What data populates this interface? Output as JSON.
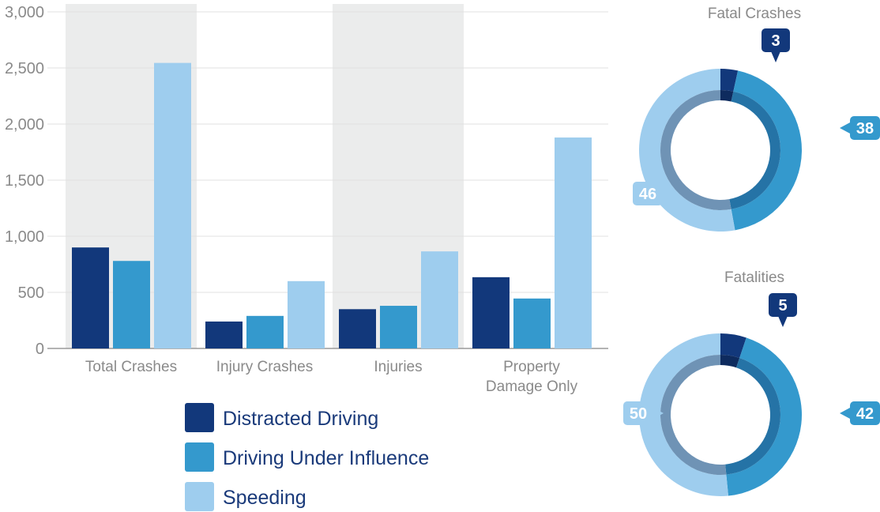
{
  "chart_data": [
    {
      "type": "bar",
      "categories": [
        "Total Crashes",
        "Injury Crashes",
        "Injuries",
        "Property Damage Only"
      ],
      "category_lines": [
        [
          "Total Crashes"
        ],
        [
          "Injury Crashes"
        ],
        [
          "Injuries"
        ],
        [
          "Property",
          "Damage Only"
        ]
      ],
      "series": [
        {
          "name": "Distracted Driving",
          "color": "#12387b",
          "values": [
            900,
            240,
            350,
            635
          ]
        },
        {
          "name": "Driving Under Influence",
          "color": "#3499cd",
          "values": [
            780,
            290,
            380,
            445
          ]
        },
        {
          "name": "Speeding",
          "color": "#9ecdee",
          "values": [
            2545,
            600,
            865,
            1880
          ]
        }
      ],
      "ylim": [
        0,
        3000
      ],
      "yticks": [
        0,
        500,
        1000,
        1500,
        2000,
        2500,
        3000
      ],
      "ytick_labels": [
        "0",
        "500",
        "1,000",
        "1,500",
        "2,000",
        "2,500",
        "3,000"
      ],
      "grid": true,
      "shaded_categories": [
        0,
        2
      ],
      "legend_position": "bottom"
    },
    {
      "type": "pie",
      "style": "donut",
      "title": "Fatal Crashes",
      "labels": [
        "Distracted Driving",
        "Driving Under Influence",
        "Speeding"
      ],
      "values": [
        3,
        38,
        46
      ]
    },
    {
      "type": "pie",
      "style": "donut",
      "title": "Fatalities",
      "labels": [
        "Distracted Driving",
        "Driving Under Influence",
        "Speeding"
      ],
      "values": [
        5,
        42,
        50
      ]
    }
  ]
}
